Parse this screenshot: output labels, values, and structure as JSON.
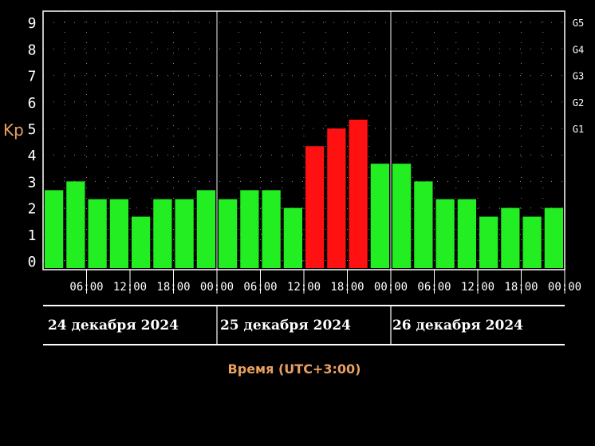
{
  "chart_data": {
    "type": "bar",
    "ylabel": "Kp",
    "xlabel": "Время (UTC+3:00)",
    "ylim": [
      0,
      9
    ],
    "y_ticks": [
      "0",
      "1",
      "2",
      "3",
      "4",
      "5",
      "6",
      "7",
      "8",
      "9"
    ],
    "g_scale_ticks": [
      "G1",
      "G2",
      "G3",
      "G4",
      "G5"
    ],
    "x_tick_labels": [
      "06:00",
      "12:00",
      "18:00",
      "00:00",
      "06:00",
      "12:00",
      "18:00",
      "00:00",
      "06:00",
      "12:00",
      "18:00",
      "00:00"
    ],
    "days": [
      "24 декабря 2024",
      "25 декабря 2024",
      "26 декабря 2024"
    ],
    "values": [
      2.67,
      3.0,
      2.33,
      2.33,
      1.67,
      2.33,
      2.33,
      2.67,
      2.33,
      2.67,
      2.67,
      2.0,
      4.33,
      5.0,
      5.33,
      3.67,
      3.67,
      3.0,
      2.33,
      2.33,
      1.67,
      2.0,
      1.67,
      2.0
    ],
    "bar_colors": [
      "#22ee22",
      "#22ee22",
      "#22ee22",
      "#22ee22",
      "#22ee22",
      "#22ee22",
      "#22ee22",
      "#22ee22",
      "#22ee22",
      "#22ee22",
      "#22ee22",
      "#22ee22",
      "#ff1111",
      "#ff1111",
      "#ff1111",
      "#22ee22",
      "#22ee22",
      "#22ee22",
      "#22ee22",
      "#22ee22",
      "#22ee22",
      "#22ee22",
      "#22ee22",
      "#22ee22"
    ],
    "grid": "dotted",
    "colors": {
      "background": "#000000",
      "axis": "#ffffff",
      "label": "#e8a060",
      "quiet": "#22ee22",
      "storm": "#ff1111"
    }
  }
}
